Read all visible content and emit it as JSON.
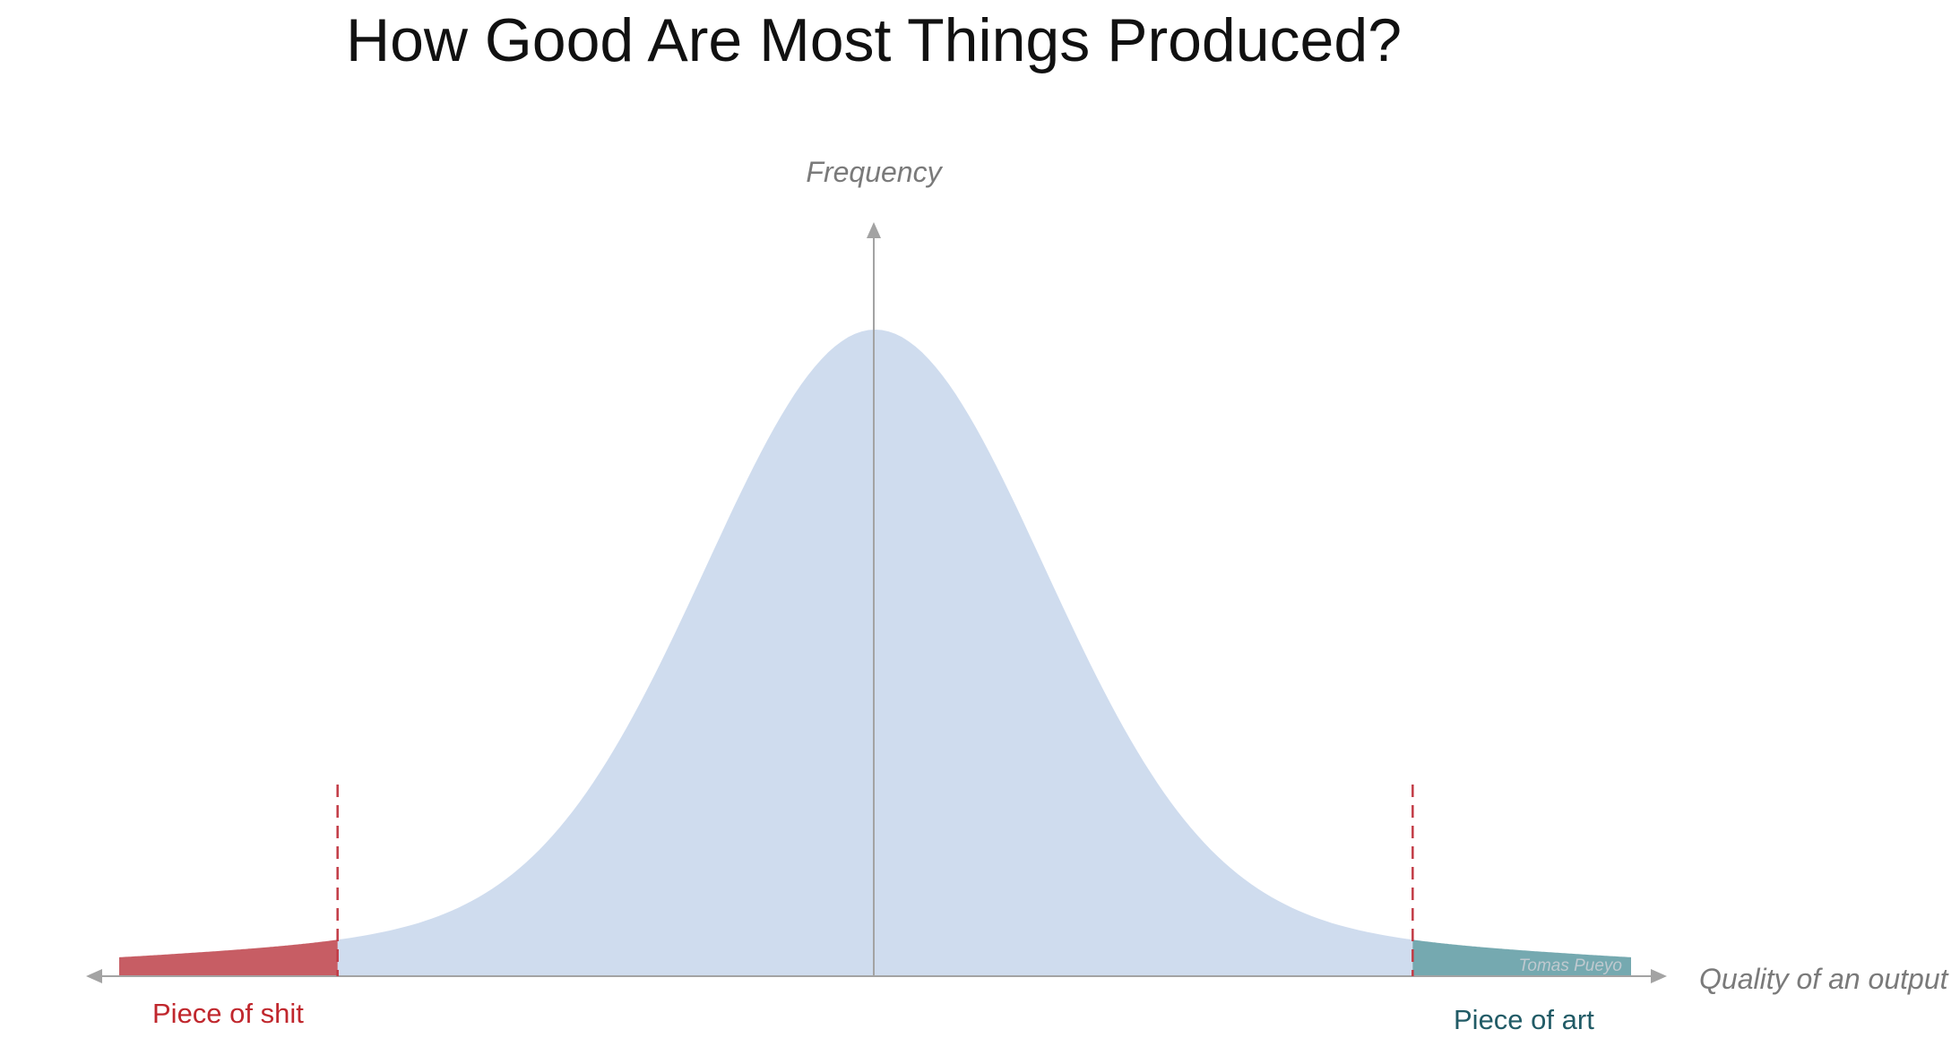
{
  "title": "How Good Are Most Things Produced?",
  "credit": "Tomas Pueyo",
  "colors": {
    "bell": "#cfdcee",
    "left_tail": "#c75d64",
    "right_tail": "#75a9b0",
    "threshold_line": "#c23b45",
    "axis": "#a3a3a3",
    "left_label": "#c0272d",
    "right_label": "#215b66"
  },
  "chart_data": {
    "type": "area",
    "title": "How Good Are Most Things Produced?",
    "xlabel": "Quality of an output",
    "ylabel": "Frequency",
    "distribution": "normal",
    "xlim": [
      -4.5,
      4.5
    ],
    "ylim": [
      0,
      1
    ],
    "mean": 0,
    "std": 1,
    "thresholds": [
      -3.2,
      3.2
    ],
    "regions": [
      {
        "name": "Piece of shit",
        "from": -4.5,
        "to": -3.2,
        "color": "#c75d64"
      },
      {
        "name": "",
        "from": -3.2,
        "to": 3.2,
        "color": "#cfdcee"
      },
      {
        "name": "Piece of art",
        "from": 3.2,
        "to": 4.5,
        "color": "#75a9b0"
      }
    ],
    "grid": false,
    "legend": "none"
  }
}
